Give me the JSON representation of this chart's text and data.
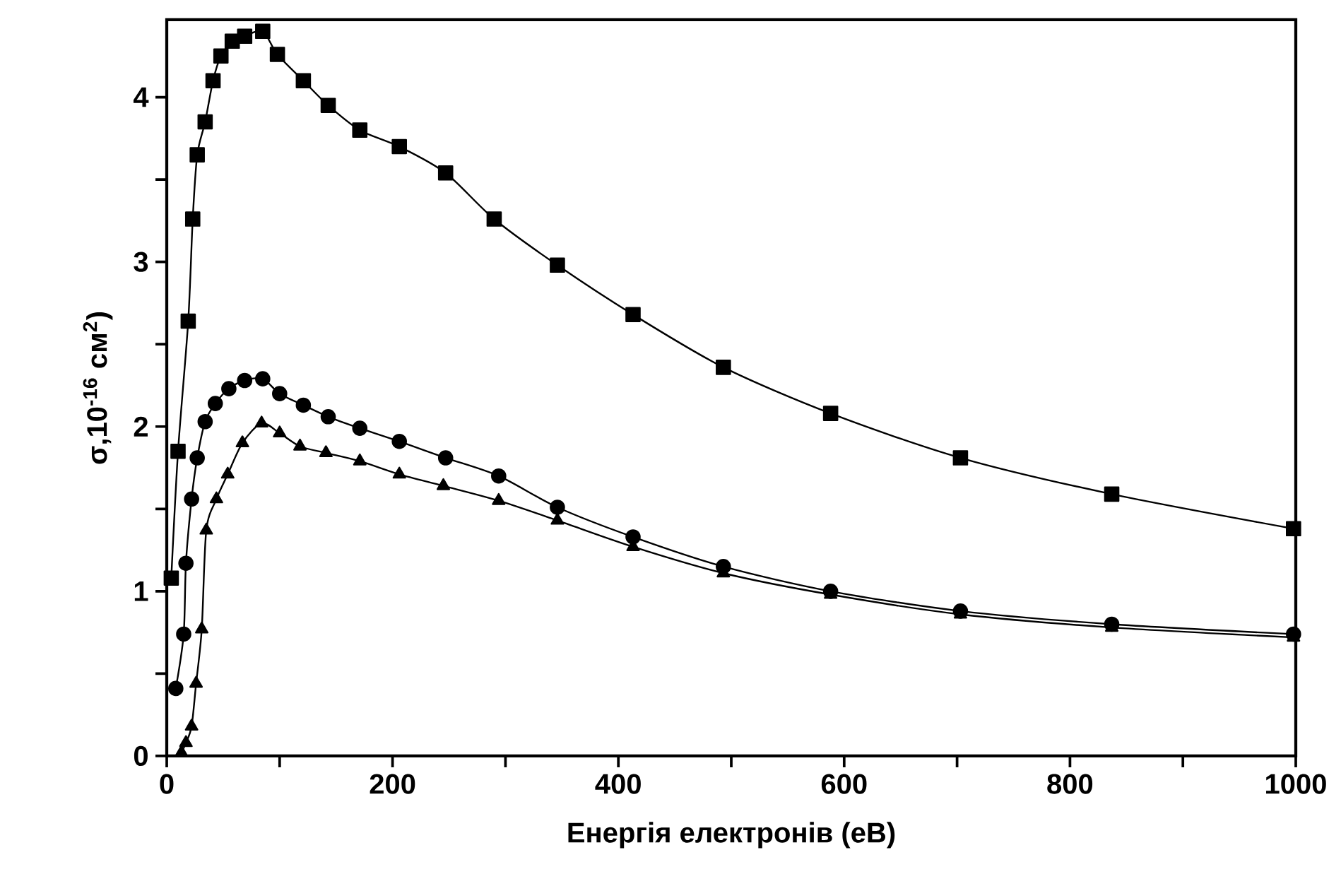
{
  "chart_data": {
    "type": "line",
    "xlabel": "Енергія електронів (еВ)",
    "ylabel": "σ,10$^{-16}$ см$^{2}$)",
    "xlim": [
      0,
      1000
    ],
    "ylim": [
      0,
      4.47
    ],
    "xticks": [
      0,
      {
        "value": 100,
        "label": null
      },
      200,
      {
        "value": 300,
        "label": null
      },
      400,
      {
        "value": 500,
        "label": null
      },
      600,
      {
        "value": 700,
        "label": null
      },
      800,
      {
        "value": 900,
        "label": null
      },
      1000
    ],
    "yticks": [
      0,
      {
        "value": 0.5,
        "label": null
      },
      1,
      {
        "value": 1.5,
        "label": null
      },
      2,
      {
        "value": 2.5,
        "label": null
      },
      3,
      {
        "value": 3.5,
        "label": null
      },
      4
    ],
    "series": [
      {
        "color": "#000000",
        "marker": "square",
        "line_style": "solid",
        "x": [
          4,
          10,
          19,
          23,
          27,
          34,
          41,
          48,
          58,
          69,
          85,
          98,
          121,
          143,
          171,
          206,
          247,
          290,
          346,
          413,
          493,
          588,
          703,
          837,
          998
        ],
        "values": [
          1.08,
          1.85,
          2.64,
          3.26,
          3.65,
          3.85,
          4.1,
          4.25,
          4.34,
          4.37,
          4.4,
          4.26,
          4.1,
          3.95,
          3.8,
          3.7,
          3.54,
          3.26,
          2.98,
          2.68,
          2.36,
          2.08,
          1.81,
          1.59,
          1.38
        ]
      },
      {
        "color": "#000000",
        "marker": "circle",
        "line_style": "solid",
        "x": [
          8,
          15,
          17,
          22,
          27,
          34,
          43,
          55,
          69,
          85,
          100,
          121,
          143,
          171,
          206,
          247,
          294,
          346,
          413,
          493,
          588,
          703,
          837,
          998
        ],
        "values": [
          0.41,
          0.74,
          1.17,
          1.56,
          1.81,
          2.03,
          2.14,
          2.23,
          2.28,
          2.29,
          2.2,
          2.13,
          2.06,
          1.99,
          1.91,
          1.81,
          1.7,
          1.51,
          1.33,
          1.15,
          1.0,
          0.88,
          0.8,
          0.74
        ]
      },
      {
        "color": "#000000",
        "marker": "triangle",
        "line_style": "solid",
        "x": [
          13,
          17,
          22,
          26,
          31,
          35,
          44,
          54,
          67,
          84,
          100,
          118,
          141,
          171,
          206,
          245,
          294,
          346,
          413,
          493,
          588,
          703,
          837,
          998
        ],
        "values": [
          0.02,
          0.08,
          0.18,
          0.44,
          0.77,
          1.37,
          1.56,
          1.71,
          1.9,
          2.02,
          1.96,
          1.88,
          1.84,
          1.79,
          1.71,
          1.64,
          1.55,
          1.43,
          1.27,
          1.11,
          0.98,
          0.86,
          0.78,
          0.72
        ]
      }
    ]
  }
}
